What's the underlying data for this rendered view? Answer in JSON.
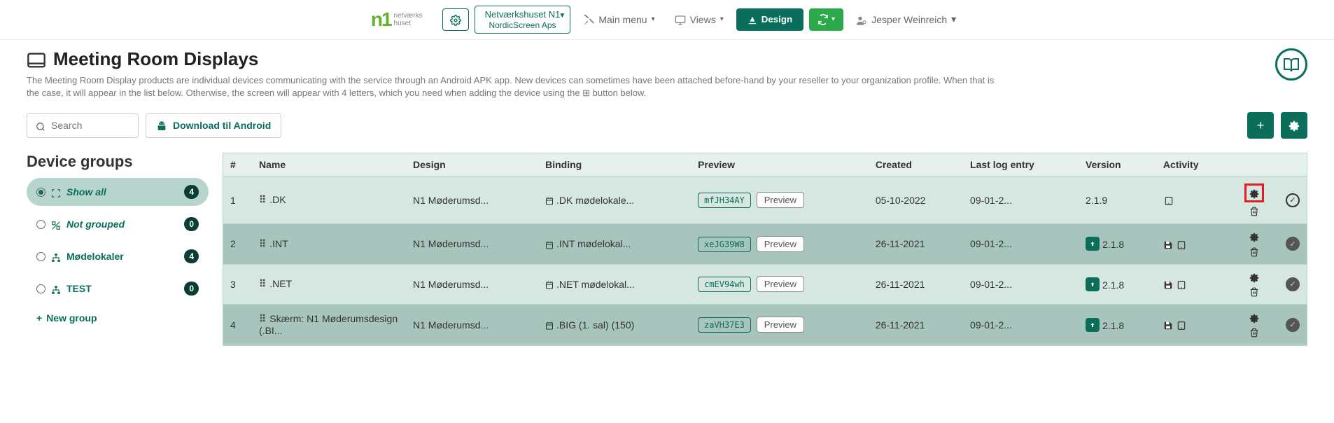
{
  "topbar": {
    "logo_brand": "n1",
    "logo_sub1": "netværks",
    "logo_sub2": "huset",
    "org_line1": "Netværkshuset N1",
    "org_line2": "NordicScreen Aps",
    "main_menu": "Main menu",
    "views": "Views",
    "design": "Design",
    "user": "Jesper Weinreich"
  },
  "page": {
    "title": "Meeting Room Displays",
    "description": "The Meeting Room Display products are individual devices communicating with the service through an Android APK app. New devices can sometimes have been attached before-hand by your reseller to your organization profile. When that is the case, it will appear in the list below. Otherwise, the screen will appear with 4 letters, which you need when adding the device using the ⊞ button below."
  },
  "toolbar": {
    "search_placeholder": "Search",
    "download": "Download til Android"
  },
  "sidebar": {
    "heading": "Device groups",
    "groups": [
      {
        "label": "Show all",
        "count": "4",
        "checked": true,
        "icon": "expand"
      },
      {
        "label": "Not grouped",
        "count": "0",
        "checked": false,
        "icon": "ungroup"
      },
      {
        "label": "Mødelokaler",
        "count": "4",
        "checked": false,
        "icon": "sitemap"
      },
      {
        "label": "TEST",
        "count": "0",
        "checked": false,
        "icon": "sitemap"
      }
    ],
    "new_group": "New group"
  },
  "table": {
    "headers": {
      "num": "#",
      "name": "Name",
      "design": "Design",
      "binding": "Binding",
      "preview": "Preview",
      "created": "Created",
      "last_log": "Last log entry",
      "version": "Version",
      "activity": "Activity"
    },
    "preview_btn": "Preview",
    "rows": [
      {
        "num": "1",
        "name": ".DK",
        "design": "N1 Møderumsd...",
        "binding": ".DK mødelokale...",
        "code": "mfJH34AY",
        "created": "05-10-2022",
        "last_log": "09-01-2...",
        "version": "2.1.9",
        "has_update": false,
        "activity": [
          "tablet"
        ],
        "status": "ok",
        "highlight_gear": true
      },
      {
        "num": "2",
        "name": ".INT",
        "design": "N1 Møderumsd...",
        "binding": ".INT mødelokal...",
        "code": "xeJG39W8",
        "created": "26-11-2021",
        "last_log": "09-01-2...",
        "version": "2.1.8",
        "has_update": true,
        "activity": [
          "save",
          "tablet"
        ],
        "status": "pending",
        "highlight_gear": false
      },
      {
        "num": "3",
        "name": ".NET",
        "design": "N1 Møderumsd...",
        "binding": ".NET mødelokal...",
        "code": "cmEV94wh",
        "created": "26-11-2021",
        "last_log": "09-01-2...",
        "version": "2.1.8",
        "has_update": true,
        "activity": [
          "save",
          "tablet"
        ],
        "status": "pending",
        "highlight_gear": false
      },
      {
        "num": "4",
        "name": "Skærm: N1 Møderumsdesign (.BI...",
        "design": "N1 Møderumsd...",
        "binding": ".BIG (1. sal) (150)",
        "code": "zaVH37E3",
        "created": "26-11-2021",
        "last_log": "09-01-2...",
        "version": "2.1.8",
        "has_update": true,
        "activity": [
          "save",
          "tablet"
        ],
        "status": "pending",
        "highlight_gear": false
      }
    ]
  },
  "colors": {
    "primary": "#0a6e5a",
    "green": "#2aa84a",
    "row_light": "#d6e6e1",
    "row_dark": "#a7c5bd",
    "highlight": "#e02020"
  }
}
